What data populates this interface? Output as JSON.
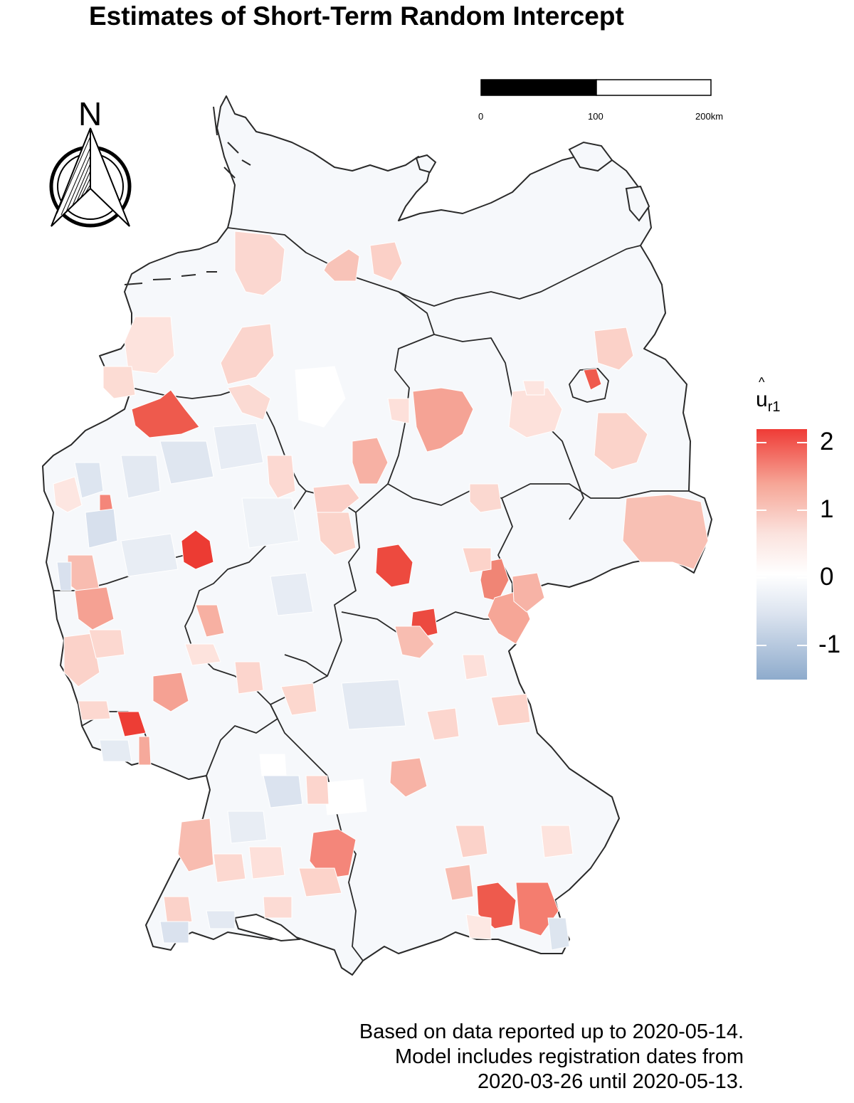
{
  "title": "Estimates of Short-Term Random Intercept",
  "north_arrow": {
    "letter": "N"
  },
  "scale_bar": {
    "labels": [
      "0",
      "100",
      "200km"
    ]
  },
  "legend": {
    "title": "u",
    "title_subscript": "r1",
    "title_accent": "^",
    "ticks": [
      {
        "label": "2",
        "value": 2
      },
      {
        "label": "1",
        "value": 1
      },
      {
        "label": "0",
        "value": 0
      },
      {
        "label": "-1",
        "value": -1
      }
    ],
    "range": [
      -1.5,
      2.2
    ],
    "color_high": "#ef3b36",
    "color_mid": "#ffffff",
    "color_low": "#8eabcc"
  },
  "caption": {
    "line1": "Based on data reported up to 2020-05-14.",
    "line2": "Model includes registration dates from",
    "line3": "2020-03-26 until 2020-05-13."
  }
}
